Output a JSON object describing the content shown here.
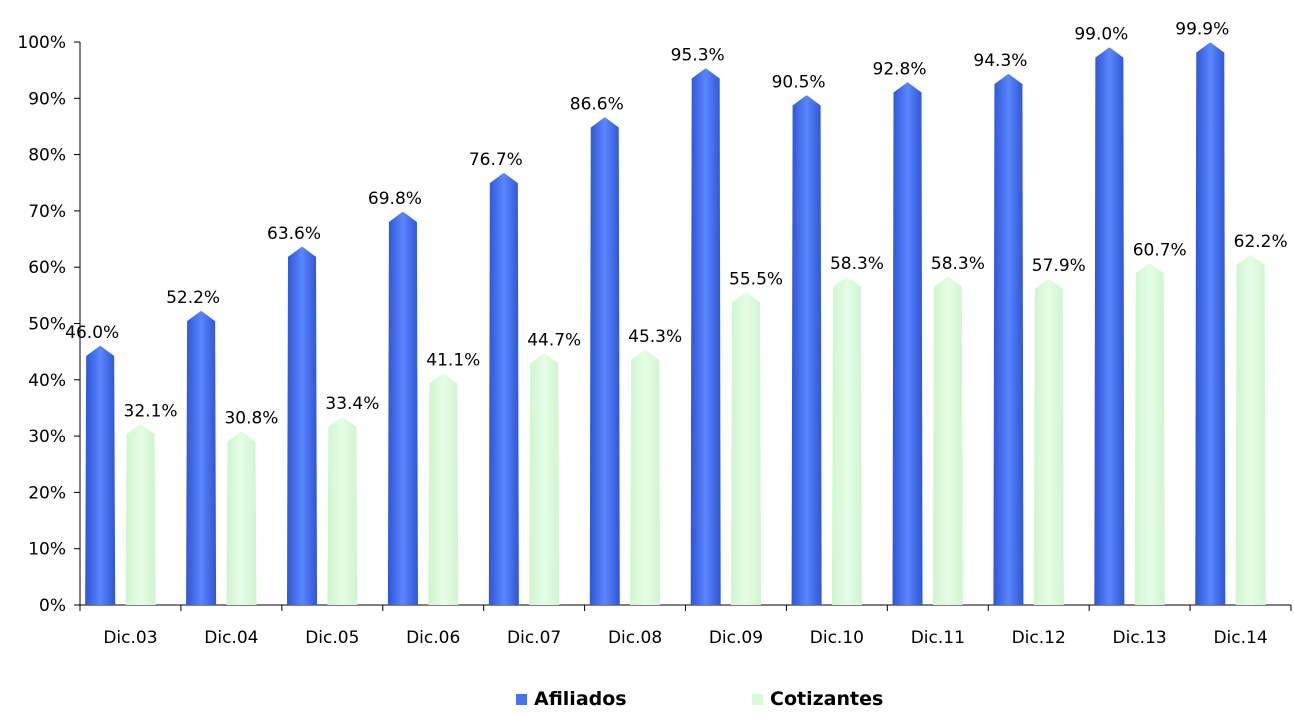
{
  "chart_data": {
    "type": "bar",
    "bar_shape": "pyramid",
    "categories": [
      "Dic.03",
      "Dic.04",
      "Dic.05",
      "Dic.06",
      "Dic.07",
      "Dic.08",
      "Dic.09",
      "Dic.10",
      "Dic.11",
      "Dic.12",
      "Dic.13",
      "Dic.14"
    ],
    "series": [
      {
        "name": "Afiliados",
        "color": "#4472F0",
        "values": [
          46.0,
          52.2,
          63.6,
          69.8,
          76.7,
          86.6,
          95.3,
          90.5,
          92.8,
          94.3,
          99.0,
          99.9
        ],
        "labels": [
          "46.0%",
          "52.2%",
          "63.6%",
          "69.8%",
          "76.7%",
          "86.6%",
          "95.3%",
          "90.5%",
          "92.8%",
          "94.3%",
          "99.0%",
          "99.9%"
        ]
      },
      {
        "name": "Cotizantes",
        "color": "#D9FAD9",
        "values": [
          32.1,
          30.8,
          33.4,
          41.1,
          44.7,
          45.3,
          55.5,
          58.3,
          58.3,
          57.9,
          60.7,
          62.2
        ],
        "labels": [
          "32.1%",
          "30.8%",
          "33.4%",
          "41.1%",
          "44.7%",
          "45.3%",
          "55.5%",
          "58.3%",
          "58.3%",
          "57.9%",
          "60.7%",
          "62.2%"
        ]
      }
    ],
    "yticks": [
      "0%",
      "10%",
      "20%",
      "30%",
      "40%",
      "50%",
      "60%",
      "70%",
      "80%",
      "90%",
      "100%"
    ],
    "ylim": [
      0,
      100
    ],
    "grid": false,
    "legend_position": "bottom-center",
    "title": "",
    "xlabel": "",
    "ylabel": ""
  }
}
